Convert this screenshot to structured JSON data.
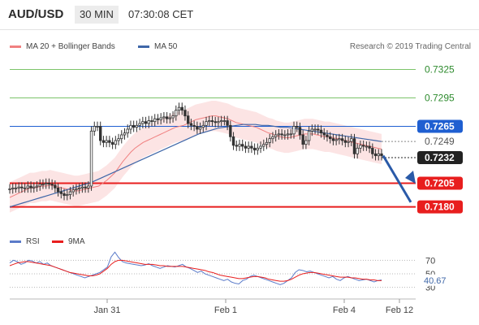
{
  "header": {
    "pair": "AUD/USD",
    "timeframe": "30 MIN",
    "time": "07:30:08 CET"
  },
  "legend": {
    "ma_bb": "MA 20 + Bollinger Bands",
    "ma50": "MA 50",
    "credit": "Research © 2019 Trading Central",
    "rsi": "RSI",
    "ma9": "9MA"
  },
  "colors": {
    "bb": "#f08080",
    "ma50": "#3f67a8",
    "green": "#7cc46a",
    "red": "#e81e1e",
    "blue_level": "#3f67a8",
    "candle": "#333333"
  },
  "chart_data": [
    {
      "type": "candlestick",
      "xlabel": "",
      "ylabel": "",
      "x_ticks": [
        "Jan 31",
        "Feb 1",
        "Feb 4",
        "Feb 12"
      ],
      "ylim": [
        0.716,
        0.734
      ],
      "levels": [
        {
          "value": "0.7325",
          "color": "#7cc46a"
        },
        {
          "value": "0.7295",
          "color": "#7cc46a"
        },
        {
          "value": "0.7265",
          "color": "#1f5fd1"
        },
        {
          "value": "0.7249",
          "color": "#666666"
        },
        {
          "value": "0.7232",
          "color": "#222222"
        },
        {
          "value": "0.7205",
          "color": "#e81e1e"
        },
        {
          "value": "0.7180",
          "color": "#e81e1e"
        }
      ],
      "close_series": [
        0.7199,
        0.72,
        0.72,
        0.7201,
        0.72,
        0.72,
        0.7202,
        0.72,
        0.7201,
        0.7202,
        0.7204,
        0.7204,
        0.7205,
        0.7204,
        0.7203,
        0.72,
        0.7196,
        0.7194,
        0.7192,
        0.7193,
        0.7196,
        0.7198,
        0.7199,
        0.72,
        0.7201,
        0.72,
        0.7202,
        0.726,
        0.7265,
        0.7265,
        0.725,
        0.7248,
        0.725,
        0.7248,
        0.7246,
        0.725,
        0.7252,
        0.7256,
        0.7258,
        0.7262,
        0.7266,
        0.7264,
        0.7266,
        0.7268,
        0.727,
        0.7268,
        0.7271,
        0.727,
        0.7273,
        0.7272,
        0.7274,
        0.7275,
        0.7273,
        0.7274,
        0.7276,
        0.7282,
        0.7285,
        0.7282,
        0.7276,
        0.7268,
        0.7266,
        0.7265,
        0.7262,
        0.7264,
        0.7266,
        0.727,
        0.7271,
        0.727,
        0.7269,
        0.727,
        0.7271,
        0.7271,
        0.7266,
        0.7254,
        0.7245,
        0.7244,
        0.7246,
        0.7244,
        0.7242,
        0.7244,
        0.7242,
        0.724,
        0.7242,
        0.7244,
        0.7246,
        0.7248,
        0.7252,
        0.7254,
        0.7256,
        0.7257,
        0.7256,
        0.7256,
        0.7257,
        0.7257,
        0.7265,
        0.7264,
        0.7256,
        0.7246,
        0.725,
        0.726,
        0.7262,
        0.7262,
        0.7261,
        0.7258,
        0.7256,
        0.7254,
        0.7252,
        0.725,
        0.7251,
        0.7252,
        0.725,
        0.7248,
        0.7249,
        0.7252,
        0.7236,
        0.7242,
        0.7245,
        0.7244,
        0.7244,
        0.7242,
        0.7236,
        0.7234,
        0.7236,
        0.7234
      ],
      "ma20_series": [
        0.719,
        0.7192,
        0.7194,
        0.7196,
        0.7198,
        0.72,
        0.72,
        0.7201,
        0.7202,
        0.7202,
        0.7203,
        0.7202,
        0.7201,
        0.72,
        0.7199,
        0.7198,
        0.7197,
        0.7197,
        0.7198,
        0.7199,
        0.72,
        0.7201,
        0.7202,
        0.7205,
        0.7208,
        0.7212,
        0.7216,
        0.7222,
        0.7228,
        0.7233,
        0.7238,
        0.7242,
        0.7245,
        0.7248,
        0.725,
        0.7252,
        0.7254,
        0.7256,
        0.7258,
        0.726,
        0.7262,
        0.7264,
        0.7265,
        0.7266,
        0.7268,
        0.727,
        0.7272,
        0.7273,
        0.7274,
        0.7275,
        0.7276,
        0.7276,
        0.7275,
        0.7274,
        0.7273,
        0.7271,
        0.7269,
        0.7268,
        0.7267,
        0.7266,
        0.7265,
        0.7264,
        0.7262,
        0.726,
        0.7258,
        0.7257,
        0.7255,
        0.7254,
        0.7253,
        0.7253,
        0.7254,
        0.7255,
        0.7256,
        0.7257,
        0.7257,
        0.7257,
        0.7256,
        0.7255,
        0.7254,
        0.7254,
        0.7253,
        0.7252,
        0.7251,
        0.725,
        0.7249,
        0.7248,
        0.7247,
        0.7246,
        0.7245,
        0.7244,
        0.7243,
        0.7242,
        0.7241
      ],
      "ma50_series": [
        0.718,
        0.7182,
        0.7184,
        0.7186,
        0.7188,
        0.719,
        0.7192,
        0.7194,
        0.7196,
        0.7198,
        0.72,
        0.7202,
        0.7204,
        0.7206,
        0.7209,
        0.7212,
        0.7215,
        0.7218,
        0.7221,
        0.7224,
        0.7227,
        0.723,
        0.7233,
        0.7236,
        0.7239,
        0.7242,
        0.7245,
        0.7248,
        0.7251,
        0.7254,
        0.7257,
        0.7259,
        0.7261,
        0.7263,
        0.7264,
        0.7265,
        0.7266,
        0.7267,
        0.7267,
        0.7267,
        0.7266,
        0.7266,
        0.7265,
        0.7264,
        0.7264,
        0.7263,
        0.7262,
        0.7261,
        0.726,
        0.7259,
        0.7258,
        0.7257,
        0.7256,
        0.7255,
        0.7254,
        0.7253,
        0.7252,
        0.7251,
        0.725,
        0.7249
      ]
    },
    {
      "type": "line",
      "title": "",
      "y_ticks": [
        "70",
        "50",
        "30"
      ],
      "ylim": [
        20,
        80
      ],
      "current_value": "40.67",
      "rsi_series": [
        66,
        70,
        68,
        64,
        66,
        70,
        69,
        66,
        68,
        64,
        66,
        62,
        60,
        58,
        56,
        54,
        52,
        50,
        48,
        46,
        44,
        46,
        48,
        50,
        52,
        56,
        60,
        75,
        82,
        74,
        68,
        66,
        65,
        64,
        63,
        62,
        63,
        65,
        62,
        60,
        58,
        60,
        62,
        61,
        60,
        62,
        64,
        60,
        58,
        55,
        52,
        54,
        50,
        48,
        46,
        44,
        42,
        40,
        42,
        38,
        36,
        35,
        40,
        42,
        46,
        48,
        46,
        44,
        42,
        40,
        38,
        36,
        34,
        36,
        40,
        44,
        52,
        56,
        55,
        53,
        54,
        52,
        50,
        48,
        46,
        44,
        46,
        42,
        40,
        44,
        46,
        44,
        42,
        40,
        41,
        42,
        40,
        38,
        40,
        41
      ],
      "ma9_series": [
        62,
        64,
        66,
        67,
        68,
        68,
        67,
        66,
        65,
        64,
        63,
        62,
        60,
        58,
        56,
        54,
        52,
        51,
        50,
        49,
        48,
        47,
        47,
        48,
        50,
        54,
        58,
        64,
        68,
        70,
        70,
        69,
        68,
        67,
        66,
        65,
        64,
        64,
        64,
        63,
        62,
        62,
        61,
        61,
        61,
        61,
        61,
        60,
        59,
        58,
        57,
        56,
        55,
        53,
        52,
        50,
        48,
        47,
        46,
        45,
        44,
        43,
        43,
        44,
        45,
        46,
        46,
        45,
        44,
        42,
        41,
        40,
        39,
        39,
        40,
        42,
        45,
        48,
        50,
        51,
        52,
        52,
        51,
        50,
        49,
        48,
        47,
        46,
        45,
        45,
        45,
        44,
        44,
        43,
        42,
        42,
        41,
        41,
        40,
        40
      ]
    }
  ]
}
